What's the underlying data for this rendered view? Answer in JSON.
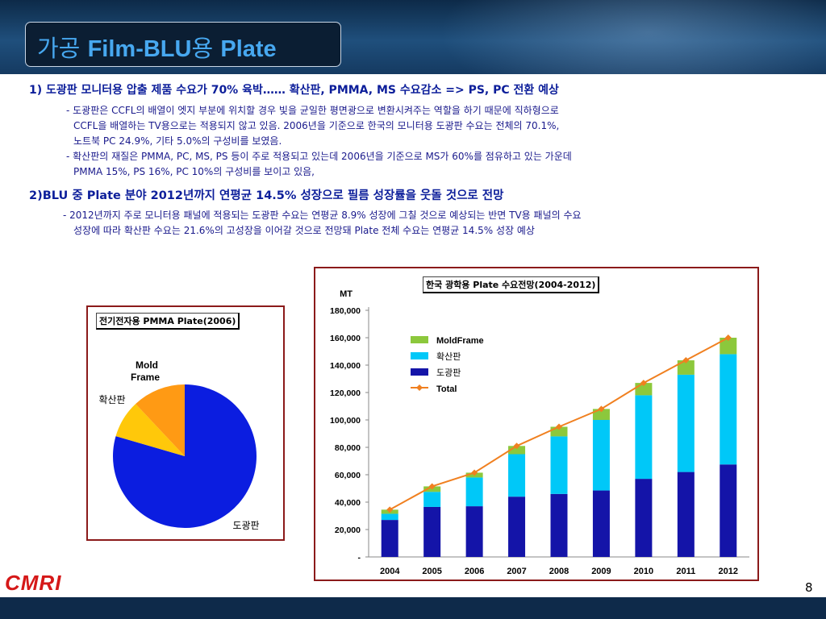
{
  "title": {
    "prefix": "가공 ",
    "main": "Film-BLU",
    "mid": "용 ",
    "tail": "Plate"
  },
  "section1": {
    "heading": "1) 도광판 모니터용 압출 제품 수요가 70% 육박…… 확산판, PMMA, MS 수요감소 => PS, PC 전환 예상",
    "bullets": [
      "- 도광판은 CCFL의 배열이 엣지 부분에 위치할 경우 빛을 균일한 평면광으로 변환시켜주는 역할을 하기 때문에 직하형으로",
      "CCFL을 배열하는 TV용으로는 적용되지 않고 있음. 2006년을 기준으로 한국의 모니터용 도광판 수요는 전체의 70.1%,",
      "노트북 PC 24.9%, 기타 5.0%의 구성비를 보였음.",
      "- 확산판의 재질은 PMMA, PC, MS, PS 등이 주로 적용되고 있는데 2006년을 기준으로 MS가 60%를 점유하고 있는 가운데",
      "PMMA 15%, PS 16%, PC 10%의 구성비를 보이고 있음,"
    ]
  },
  "section2": {
    "heading": "2)BLU 중 Plate 분야 2012년까지 연평균 14.5% 성장으로 필름 성장률을 웃돌 것으로 전망",
    "bullets": [
      "- 2012년까지 주로 모니터용 패널에 적용되는 도광판 수요는 연평균 8.9% 성장에 그칠 것으로 예상되는 반면 TV용 패널의 수요",
      "성장에 따라 확산판 수요는 21.6%의 고성장을 이어갈 것으로 전망돼 Plate 전체 수요는 연평균 14.5% 성장 예상"
    ]
  },
  "colors": {
    "light_guide": "#1414a8",
    "diffuser": "#00c8f8",
    "mold_frame": "#8cc83c",
    "total": "#f08020",
    "pie_blue": "#0b1de0",
    "pie_yellow": "#ffc80a",
    "pie_orange": "#ff9a14",
    "border": "#8b1a1a"
  },
  "chart_data": [
    {
      "type": "pie",
      "title": "전기전자용 PMMA Plate(2006)",
      "labels": [
        "도광판",
        "확산판",
        "Mold Frame"
      ],
      "values": [
        79.5,
        8.5,
        12.0
      ],
      "label_mold_1": "Mold",
      "label_mold_2": "Frame"
    },
    {
      "type": "bar",
      "stacked": true,
      "title": "한국 광학용 Plate 수요전망(2004-2012)",
      "ylabel": "MT",
      "categories": [
        "2004",
        "2005",
        "2006",
        "2007",
        "2008",
        "2009",
        "2010",
        "2011",
        "2012"
      ],
      "series": [
        {
          "name": "도광판",
          "values": [
            27000,
            36500,
            37000,
            44000,
            46000,
            48500,
            57000,
            62000,
            67500
          ]
        },
        {
          "name": "확산판",
          "values": [
            4500,
            11000,
            21000,
            31000,
            42000,
            51500,
            61000,
            71000,
            80500
          ]
        },
        {
          "name": "MoldFrame",
          "values": [
            3000,
            4000,
            3500,
            6000,
            7000,
            8000,
            9000,
            10500,
            12000
          ]
        }
      ],
      "line": {
        "name": "Total",
        "values": [
          34500,
          51500,
          61500,
          81000,
          95000,
          108000,
          127000,
          143500,
          160000
        ]
      },
      "yticks": [
        "-",
        "20,000",
        "40,000",
        "60,000",
        "80,000",
        "100,000",
        "120,000",
        "140,000",
        "160,000",
        "180,000"
      ],
      "ylim": [
        0,
        180000
      ],
      "legend": [
        "MoldFrame",
        "확산판",
        "도광판",
        "Total"
      ]
    }
  ],
  "footer": {
    "logo": "CMRI",
    "page": "8"
  }
}
